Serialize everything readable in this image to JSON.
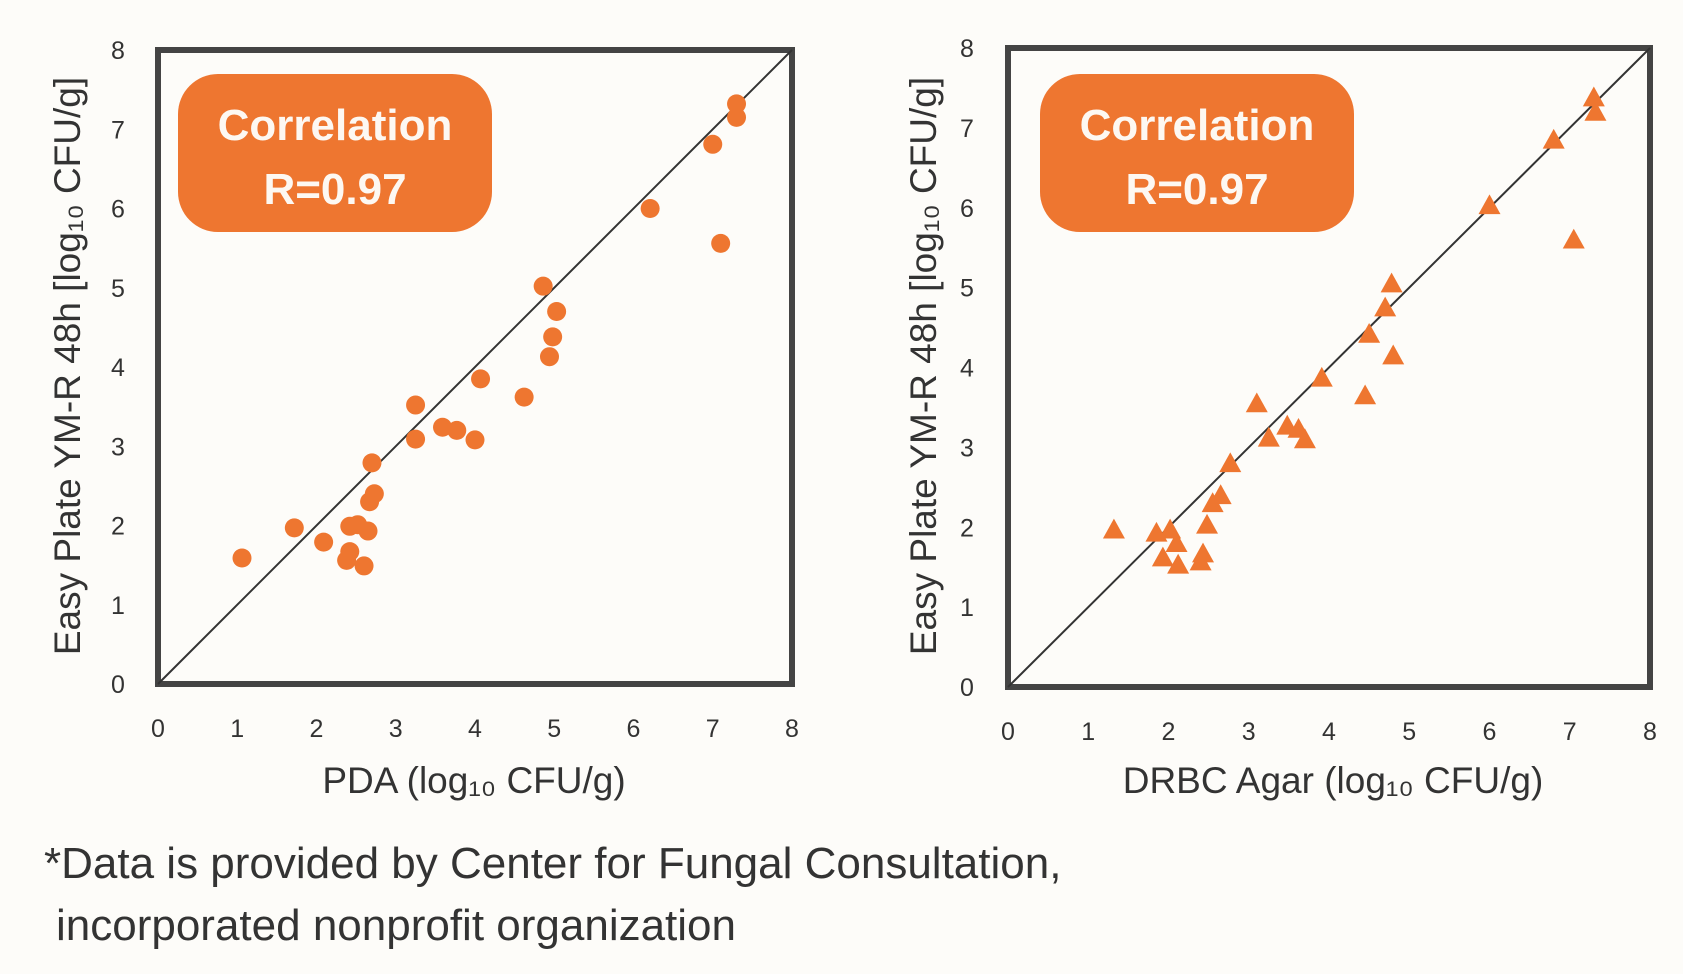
{
  "chart_data": [
    {
      "type": "scatter",
      "marker": "circle",
      "color": "#ee7630",
      "xlabel": "PDA (log₁₀ CFU/g)",
      "ylabel": "Easy Plate YM-R 48h [log₁₀ CFU/g]",
      "xlim": [
        0,
        8
      ],
      "ylim": [
        0,
        8
      ],
      "xticks": [
        "0",
        "1",
        "2",
        "3",
        "4",
        "5",
        "6",
        "7",
        "8"
      ],
      "yticks": [
        "0",
        "1",
        "2",
        "3",
        "4",
        "5",
        "6",
        "7",
        "8"
      ],
      "grid": false,
      "reference_line": "y = x",
      "badge": {
        "line1": "Correlation",
        "line2": "R=0.97"
      },
      "points": [
        [
          1.06,
          1.59
        ],
        [
          1.72,
          1.97
        ],
        [
          2.09,
          1.79
        ],
        [
          2.38,
          1.56
        ],
        [
          2.42,
          1.67
        ],
        [
          2.42,
          1.99
        ],
        [
          2.52,
          2.01
        ],
        [
          2.6,
          1.49
        ],
        [
          2.65,
          1.93
        ],
        [
          2.67,
          2.3
        ],
        [
          2.73,
          2.4
        ],
        [
          2.7,
          2.79
        ],
        [
          3.25,
          3.52
        ],
        [
          3.25,
          3.09
        ],
        [
          3.59,
          3.24
        ],
        [
          3.77,
          3.2
        ],
        [
          4.0,
          3.08
        ],
        [
          4.07,
          3.85
        ],
        [
          4.62,
          3.62
        ],
        [
          4.86,
          5.02
        ],
        [
          4.94,
          4.13
        ],
        [
          4.98,
          4.38
        ],
        [
          5.03,
          4.7
        ],
        [
          6.21,
          6.0
        ],
        [
          7.0,
          6.81
        ],
        [
          7.1,
          5.56
        ],
        [
          7.3,
          7.15
        ],
        [
          7.3,
          7.32
        ]
      ]
    },
    {
      "type": "scatter",
      "marker": "triangle",
      "color": "#ee7630",
      "xlabel": "DRBC Agar (log₁₀ CFU/g)",
      "ylabel": "Easy Plate YM-R 48h [log₁₀ CFU/g]",
      "xlim": [
        0,
        8
      ],
      "ylim": [
        0,
        8
      ],
      "xticks": [
        "0",
        "1",
        "2",
        "3",
        "4",
        "5",
        "6",
        "7",
        "8"
      ],
      "yticks": [
        "0",
        "1",
        "2",
        "3",
        "4",
        "5",
        "6",
        "7",
        "8"
      ],
      "grid": false,
      "reference_line": "y = x",
      "badge": {
        "line1": "Correlation",
        "line2": "R=0.97"
      },
      "points": [
        [
          1.32,
          1.97
        ],
        [
          1.85,
          1.93
        ],
        [
          1.93,
          1.62
        ],
        [
          2.02,
          1.97
        ],
        [
          2.1,
          1.8
        ],
        [
          2.12,
          1.53
        ],
        [
          2.4,
          1.57
        ],
        [
          2.43,
          1.67
        ],
        [
          2.48,
          2.03
        ],
        [
          2.55,
          2.3
        ],
        [
          2.65,
          2.4
        ],
        [
          2.77,
          2.8
        ],
        [
          3.1,
          3.55
        ],
        [
          3.25,
          3.12
        ],
        [
          3.48,
          3.27
        ],
        [
          3.62,
          3.23
        ],
        [
          3.7,
          3.1
        ],
        [
          3.91,
          3.87
        ],
        [
          4.45,
          3.65
        ],
        [
          4.5,
          4.42
        ],
        [
          4.7,
          4.75
        ],
        [
          4.78,
          5.05
        ],
        [
          4.8,
          4.15
        ],
        [
          6.0,
          6.03
        ],
        [
          6.8,
          6.85
        ],
        [
          7.05,
          5.6
        ],
        [
          7.3,
          7.38
        ],
        [
          7.32,
          7.2
        ]
      ]
    }
  ],
  "footnote": {
    "line1": "*Data is provided by Center for Fungal Consultation,",
    "line2": "incorporated nonprofit organization"
  }
}
